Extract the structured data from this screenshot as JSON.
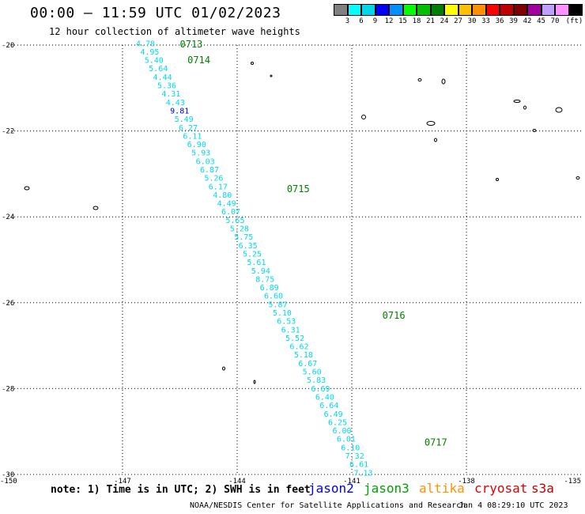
{
  "header": {
    "title": "00:00 – 11:59 UTC 01/02/2023",
    "subtitle": "12 hour collection of altimeter wave heights"
  },
  "legend": {
    "colors": [
      "#808080",
      "#00ffff",
      "#00d8e8",
      "#0000ff",
      "#0090ff",
      "#00ff00",
      "#00c000",
      "#008000",
      "#ffff00",
      "#ffc000",
      "#ff9000",
      "#ff0000",
      "#c00000",
      "#800000",
      "#a000a0",
      "#c0a0ff",
      "#ff90ff",
      "#000000"
    ],
    "labels": [
      "3",
      "6",
      "9",
      "12",
      "15",
      "18",
      "21",
      "24",
      "27",
      "30",
      "33",
      "36",
      "39",
      "42",
      "45",
      "70"
    ],
    "unit": "(ft)"
  },
  "map": {
    "lon_range": [
      -150,
      -135
    ],
    "lat_range": [
      -30,
      -20
    ],
    "x_ticks": [
      "-150",
      "-147",
      "-144",
      "-141",
      "-138",
      "-135"
    ],
    "y_ticks": [
      "-20",
      "-22",
      "-24",
      "-26",
      "-28",
      "-30"
    ],
    "x_tick_values": [
      -150,
      -147,
      -144,
      -141,
      -138,
      -135
    ],
    "y_tick_values": [
      -20,
      -22,
      -24,
      -26,
      -28,
      -30
    ],
    "track_color": "#00d8e8",
    "time_color": "#008000",
    "pass": {
      "start": [
        -146.4,
        -19.95
      ],
      "end": [
        -140.7,
        -29.95
      ],
      "swh": [
        "4.78",
        "4.95",
        "5.40",
        "5.64",
        "4.44",
        "5.36",
        "4.31",
        "4.43",
        "9.81",
        "5.49",
        "6.27",
        "6.11",
        "6.90",
        "5.93",
        "6.03",
        "6.87",
        "5.26",
        "6.17",
        "4.80",
        "4.49",
        "6.07",
        "5.65",
        "5.28",
        "5.75",
        "6.35",
        "5.25",
        "5.61",
        "5.94",
        "8.75",
        "6.89",
        "6.60",
        "5.87",
        "5.10",
        "6.53",
        "6.31",
        "5.52",
        "6.62",
        "5.18",
        "6.67",
        "5.60",
        "5.83",
        "6.69",
        "6.40",
        "6.64",
        "6.49",
        "6.25",
        "6.00",
        "6.01",
        "6.10",
        "7.32",
        "6.61",
        "7.13"
      ],
      "highlight": {
        "8": "#0000c8"
      }
    },
    "time_labels": [
      {
        "text": "0713",
        "lon": -145.5,
        "lat": -19.98
      },
      {
        "text": "0714",
        "lon": -145.3,
        "lat": -20.35
      },
      {
        "text": "0715",
        "lon": -142.7,
        "lat": -23.35
      },
      {
        "text": "0716",
        "lon": -140.2,
        "lat": -26.3
      },
      {
        "text": "0717",
        "lon": -139.1,
        "lat": -29.25
      }
    ]
  },
  "footer": {
    "note": "note: 1) Time is in UTC; 2) SWH is in feet",
    "satellites": [
      {
        "name": "jason2",
        "color": "#0000e0"
      },
      {
        "name": "jason3",
        "color": "#00a000"
      },
      {
        "name": "altika",
        "color": "#ff9000"
      },
      {
        "name": "cryosat",
        "color": "#e00000"
      },
      {
        "name": "s3a",
        "color": "#c00000"
      }
    ],
    "credit": "NOAA/NESDIS Center for Satellite Applications and Research",
    "timestamp": "Jan  4 08:29:10 UTC 2023"
  }
}
